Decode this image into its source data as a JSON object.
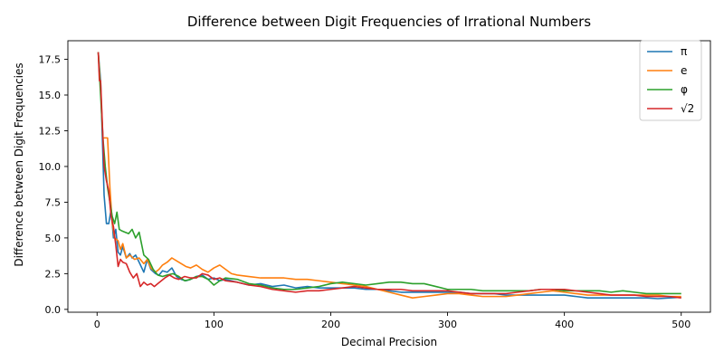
{
  "chart_data": {
    "type": "line",
    "title": "Difference between Digit Frequencies of Irrational Numbers",
    "xlabel": "Decimal Precision",
    "ylabel": "Difference between Digit Frequencies",
    "xlim": [
      -25,
      525
    ],
    "ylim": [
      -0.2,
      18.8
    ],
    "xticks": [
      0,
      100,
      200,
      300,
      400,
      500
    ],
    "yticks": [
      0.0,
      2.5,
      5.0,
      7.5,
      10.0,
      12.5,
      15.0,
      17.5
    ],
    "ytick_labels": [
      "0.0",
      "2.5",
      "5.0",
      "7.5",
      "10.0",
      "12.5",
      "15.0",
      "17.5"
    ],
    "grid": false,
    "legend_position": "top-right",
    "series": [
      {
        "name": "π",
        "color": "#1f77b4",
        "x": [
          1,
          3,
          6,
          8,
          10,
          12,
          14,
          16,
          18,
          20,
          22,
          25,
          28,
          30,
          33,
          36,
          40,
          43,
          46,
          50,
          53,
          56,
          60,
          64,
          68,
          72,
          76,
          80,
          85,
          90,
          95,
          100,
          105,
          110,
          120,
          130,
          140,
          150,
          160,
          170,
          180,
          190,
          200,
          210,
          220,
          230,
          240,
          250,
          260,
          270,
          280,
          290,
          300,
          310,
          320,
          330,
          340,
          350,
          360,
          370,
          380,
          390,
          400,
          410,
          420,
          430,
          440,
          450,
          460,
          470,
          480,
          490,
          500
        ],
        "y": [
          18,
          16,
          8,
          6,
          6,
          7,
          5,
          5.6,
          4,
          3.8,
          4.4,
          3.6,
          3.9,
          3.6,
          3.8,
          3.3,
          2.6,
          3.5,
          2.8,
          2.5,
          2.4,
          2.7,
          2.6,
          2.9,
          2.3,
          2.1,
          2.0,
          2.1,
          2.3,
          2.4,
          2.1,
          2.2,
          2.0,
          2.1,
          1.9,
          1.7,
          1.8,
          1.6,
          1.7,
          1.5,
          1.6,
          1.5,
          1.5,
          1.5,
          1.5,
          1.4,
          1.4,
          1.3,
          1.2,
          1.2,
          1.2,
          1.2,
          1.2,
          1.2,
          1.1,
          1.1,
          1.1,
          1.0,
          1.0,
          1.0,
          1.0,
          1.0,
          1.0,
          0.9,
          0.8,
          0.8,
          0.8,
          0.8,
          0.8,
          0.8,
          0.75,
          0.8,
          0.85
        ]
      },
      {
        "name": "e",
        "color": "#ff7f0e",
        "x": [
          1,
          3,
          5,
          7,
          9,
          11,
          13,
          15,
          18,
          20,
          22,
          25,
          28,
          32,
          36,
          40,
          43,
          46,
          50,
          53,
          56,
          60,
          64,
          68,
          72,
          76,
          80,
          85,
          90,
          95,
          100,
          105,
          110,
          115,
          120,
          130,
          140,
          150,
          160,
          170,
          180,
          190,
          200,
          210,
          220,
          230,
          240,
          250,
          260,
          270,
          280,
          290,
          300,
          310,
          320,
          330,
          340,
          350,
          360,
          370,
          380,
          390,
          400,
          410,
          420,
          430,
          440,
          450,
          460,
          470,
          480,
          490,
          500
        ],
        "y": [
          18,
          15.5,
          12,
          12,
          12,
          8.5,
          6,
          5,
          4.8,
          4.2,
          4.6,
          3.6,
          3.8,
          3.5,
          3.6,
          3.2,
          3.5,
          2.9,
          2.6,
          2.8,
          3.1,
          3.3,
          3.6,
          3.4,
          3.2,
          3.0,
          2.9,
          3.1,
          2.8,
          2.6,
          2.9,
          3.1,
          2.8,
          2.5,
          2.4,
          2.3,
          2.2,
          2.2,
          2.2,
          2.1,
          2.1,
          2.0,
          1.9,
          1.8,
          1.7,
          1.6,
          1.4,
          1.2,
          1.0,
          0.8,
          0.9,
          1.0,
          1.1,
          1.1,
          1.0,
          0.9,
          0.9,
          0.9,
          1.0,
          1.1,
          1.2,
          1.3,
          1.2,
          1.1,
          1.0,
          1.0,
          1.0,
          1.0,
          1.0,
          1.0,
          1.0,
          0.9,
          0.9
        ]
      },
      {
        "name": "φ",
        "color": "#2ca02c",
        "x": [
          1,
          3,
          5,
          7,
          9,
          11,
          13,
          15,
          17,
          19,
          21,
          24,
          27,
          30,
          33,
          36,
          40,
          44,
          48,
          52,
          56,
          60,
          65,
          70,
          75,
          80,
          85,
          90,
          95,
          100,
          105,
          110,
          120,
          130,
          140,
          150,
          160,
          170,
          180,
          190,
          200,
          210,
          220,
          230,
          240,
          250,
          260,
          270,
          280,
          290,
          300,
          310,
          320,
          330,
          340,
          350,
          360,
          370,
          380,
          390,
          400,
          410,
          420,
          430,
          440,
          450,
          460,
          470,
          480,
          490,
          500
        ],
        "y": [
          18,
          15,
          12,
          10,
          8.5,
          7.5,
          6.5,
          6.0,
          6.8,
          5.6,
          5.5,
          5.4,
          5.3,
          5.6,
          5.0,
          5.4,
          3.8,
          3.5,
          2.8,
          2.4,
          2.3,
          2.4,
          2.5,
          2.3,
          2.0,
          2.1,
          2.3,
          2.3,
          2.1,
          1.7,
          2.0,
          2.2,
          2.1,
          1.8,
          1.7,
          1.5,
          1.4,
          1.4,
          1.5,
          1.6,
          1.8,
          1.9,
          1.8,
          1.7,
          1.8,
          1.9,
          1.9,
          1.8,
          1.8,
          1.6,
          1.4,
          1.4,
          1.4,
          1.3,
          1.3,
          1.3,
          1.3,
          1.3,
          1.4,
          1.4,
          1.3,
          1.3,
          1.3,
          1.3,
          1.2,
          1.3,
          1.2,
          1.1,
          1.1,
          1.1,
          1.1
        ]
      },
      {
        "name": "√2",
        "color": "#d62728",
        "x": [
          1,
          2,
          3,
          4,
          5,
          6,
          8,
          10,
          12,
          14,
          16,
          18,
          20,
          22,
          25,
          28,
          31,
          34,
          37,
          40,
          43,
          46,
          49,
          52,
          55,
          58,
          62,
          66,
          70,
          75,
          80,
          85,
          90,
          95,
          100,
          105,
          110,
          120,
          130,
          140,
          150,
          160,
          170,
          180,
          190,
          200,
          210,
          220,
          230,
          240,
          250,
          260,
          270,
          280,
          290,
          300,
          310,
          320,
          330,
          340,
          350,
          360,
          370,
          380,
          390,
          400,
          410,
          420,
          430,
          440,
          450,
          460,
          470,
          480,
          490,
          500
        ],
        "y": [
          18,
          16,
          16,
          14,
          12,
          10,
          9,
          8.3,
          6.5,
          5.8,
          4.5,
          3.0,
          3.5,
          3.3,
          3.2,
          2.6,
          2.2,
          2.5,
          1.6,
          1.9,
          1.7,
          1.8,
          1.6,
          1.8,
          2.0,
          2.2,
          2.4,
          2.2,
          2.1,
          2.3,
          2.2,
          2.2,
          2.5,
          2.4,
          2.1,
          2.2,
          2.0,
          1.9,
          1.7,
          1.6,
          1.4,
          1.3,
          1.2,
          1.3,
          1.3,
          1.4,
          1.5,
          1.6,
          1.5,
          1.4,
          1.4,
          1.4,
          1.3,
          1.3,
          1.3,
          1.3,
          1.2,
          1.1,
          1.1,
          1.1,
          1.1,
          1.2,
          1.3,
          1.4,
          1.4,
          1.4,
          1.3,
          1.2,
          1.1,
          1.0,
          1.0,
          1.0,
          0.9,
          0.9,
          0.9,
          0.8
        ]
      }
    ]
  }
}
